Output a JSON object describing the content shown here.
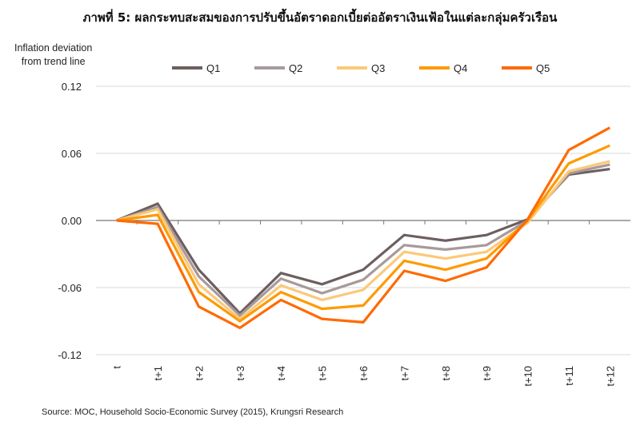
{
  "chart_data": {
    "type": "line",
    "title": "ภาพที่ 5: ผลกระทบสะสมของการปรับขึ้นอัตราดอกเบี้ยต่ออัตราเงินเฟ้อในแต่ละกลุ่มครัวเรือน",
    "ylabel": "Inflation deviation from trend line",
    "ylabel_lines": [
      "Inflation deviation",
      "from trend line"
    ],
    "xlabel": "",
    "categories": [
      "t",
      "t+1",
      "t+2",
      "t+3",
      "t+4",
      "t+5",
      "t+6",
      "t+7",
      "t+8",
      "t+9",
      "t+10",
      "t+11",
      "t+12"
    ],
    "ylim": [
      -0.12,
      0.12
    ],
    "yticks": [
      "0.12",
      "0.06",
      "0.00",
      "-0.06",
      "-0.12"
    ],
    "ytick_values": [
      0.12,
      0.06,
      0,
      -0.06,
      -0.12
    ],
    "grid": true,
    "legend_position": "top",
    "series": [
      {
        "name": "Q1",
        "color": "#6d5f5f",
        "values": [
          0,
          0.015,
          -0.044,
          -0.083,
          -0.047,
          -0.057,
          -0.044,
          -0.013,
          -0.018,
          -0.013,
          0.001,
          0.041,
          0.046
        ]
      },
      {
        "name": "Q2",
        "color": "#a8999a",
        "values": [
          0,
          0.012,
          -0.05,
          -0.085,
          -0.052,
          -0.065,
          -0.053,
          -0.022,
          -0.026,
          -0.022,
          0,
          0.042,
          0.05
        ]
      },
      {
        "name": "Q3",
        "color": "#fbc97a",
        "values": [
          0,
          0.01,
          -0.057,
          -0.088,
          -0.058,
          -0.071,
          -0.062,
          -0.028,
          -0.034,
          -0.028,
          -0.002,
          0.044,
          0.053
        ]
      },
      {
        "name": "Q4",
        "color": "#ff9a00",
        "values": [
          0,
          0.005,
          -0.064,
          -0.09,
          -0.064,
          -0.079,
          -0.076,
          -0.036,
          -0.044,
          -0.034,
          0,
          0.051,
          0.067
        ]
      },
      {
        "name": "Q5",
        "color": "#ff6a00",
        "values": [
          0,
          -0.003,
          -0.077,
          -0.096,
          -0.071,
          -0.088,
          -0.091,
          -0.045,
          -0.054,
          -0.042,
          0.001,
          0.063,
          0.083
        ]
      }
    ],
    "source": "Source: MOC, Household Socio-Economic Survey (2015), Krungsri Research"
  }
}
